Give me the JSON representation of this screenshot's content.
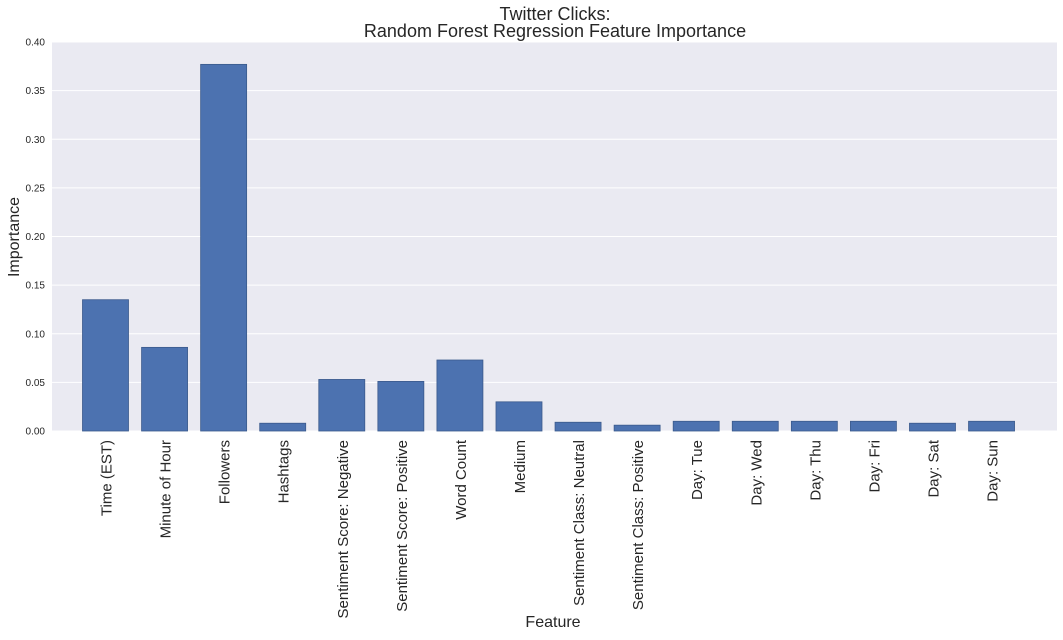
{
  "colors": {
    "plot_background": "#EAEAF2",
    "bar_fill": "#4C72B0",
    "bar_edge": "#3B5A8C",
    "grid": "#FFFFFF",
    "text": "#262626",
    "page_background": "#FFFFFF"
  },
  "chart_data": {
    "type": "bar",
    "title_line1": "Twitter Clicks:",
    "title_line2": "Random Forest Regression Feature Importance",
    "xlabel": "Feature",
    "ylabel": "Importance",
    "ylim": [
      0,
      0.4
    ],
    "yticks": [
      "0.00",
      "0.05",
      "0.10",
      "0.15",
      "0.20",
      "0.25",
      "0.30",
      "0.35",
      "0.40"
    ],
    "grid": "horizontal",
    "categories": [
      "Time (EST)",
      "Minute of Hour",
      "Followers",
      "Hashtags",
      "Sentiment Score: Negative",
      "Sentiment Score: Positive",
      "Word Count",
      "Medium",
      "Sentiment Class: Neutral",
      "Sentiment Class: Positive",
      "Day: Tue",
      "Day: Wed",
      "Day: Thu",
      "Day: Fri",
      "Day: Sat",
      "Day: Sun"
    ],
    "values": [
      0.135,
      0.086,
      0.377,
      0.008,
      0.053,
      0.051,
      0.073,
      0.03,
      0.009,
      0.006,
      0.01,
      0.01,
      0.01,
      0.01,
      0.008,
      0.01
    ]
  }
}
